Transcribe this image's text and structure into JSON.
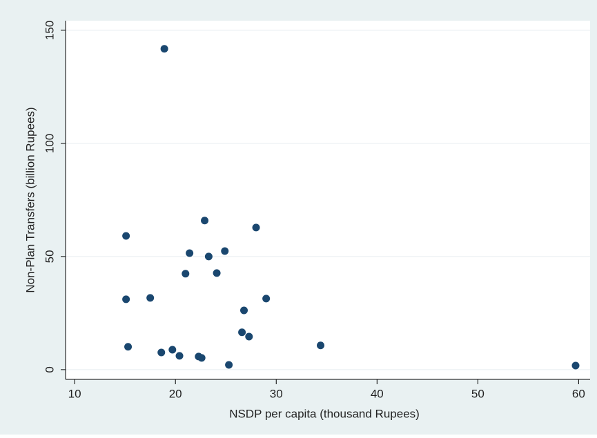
{
  "chart_data": {
    "type": "scatter",
    "xlabel": "NSDP per capita (thousand Rupees)",
    "ylabel": "Non-Plan Transfers (billion Rupees)",
    "x": [
      18.9,
      15.1,
      22.9,
      28.0,
      21.4,
      24.9,
      23.3,
      21.0,
      24.1,
      15.1,
      17.5,
      29.0,
      26.8,
      26.6,
      27.3,
      15.3,
      34.4,
      18.6,
      19.7,
      20.4,
      22.3,
      22.6,
      25.3,
      59.7
    ],
    "values": [
      141.8,
      59.1,
      65.9,
      62.8,
      51.5,
      52.4,
      50,
      42.4,
      42.7,
      31.1,
      31.7,
      31.4,
      26.2,
      16.5,
      14.6,
      10.1,
      10.7,
      7.6,
      8.8,
      6.1,
      5.8,
      5.2,
      2.1,
      1.8
    ],
    "color": "#1a476f",
    "xlim": [
      9.1,
      61.0
    ],
    "ylim": [
      -4.3,
      152.7
    ],
    "xticks": [
      10,
      20,
      30,
      40,
      50,
      60
    ],
    "yticks": [
      0,
      50,
      100,
      150
    ],
    "grid": true
  }
}
